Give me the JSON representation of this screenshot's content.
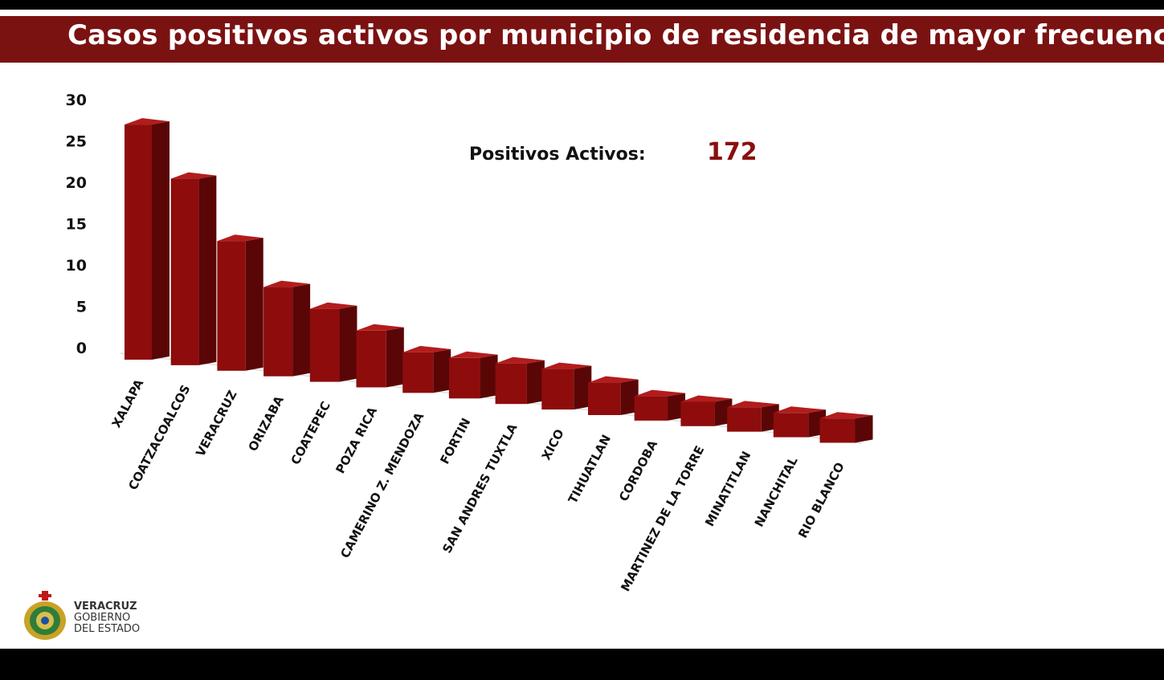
{
  "title": "Casos positivos activos por municipio de residencia de mayor frecuencia",
  "summary": {
    "label": "Positivos Activos:",
    "value": "172"
  },
  "colors": {
    "header": "#7b1212",
    "bar_front": "#8e0c0c",
    "bar_side": "#5a0606",
    "bar_top": "#b31c1c",
    "total_value": "#8a0f0f"
  },
  "logo": {
    "line1": "VERACRUZ",
    "line2": "GOBIERNO",
    "line3": "DEL ESTADO",
    "icon": "state-seal-icon"
  },
  "chart_data": {
    "type": "bar",
    "title": "",
    "xlabel": "",
    "ylabel": "",
    "ylim": [
      0,
      30
    ],
    "yticks": [
      0,
      5,
      10,
      15,
      20,
      25,
      30
    ],
    "grid": false,
    "legend": "none",
    "categories": [
      "XALAPA",
      "COATZACOALCOS",
      "VERACRUZ",
      "ORIZABA",
      "COATEPEC",
      "POZA RICA",
      "CAMERINO Z. MENDOZA",
      "FORTIN",
      "SAN ANDRES TUXTLA",
      "XICO",
      "TIHUATLAN",
      "CORDOBA",
      "MARTINEZ DE LA TORRE",
      "MINATITLAN",
      "NANCHITAL",
      "RIO BLANCO"
    ],
    "values": [
      29,
      23,
      16,
      11,
      9,
      7,
      5,
      5,
      5,
      5,
      4,
      3,
      3,
      3,
      3,
      3
    ]
  }
}
